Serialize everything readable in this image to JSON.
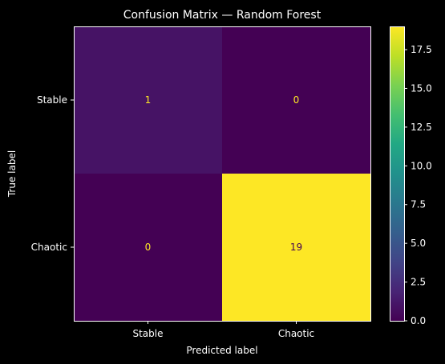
{
  "chart_data": {
    "type": "heatmap",
    "title": "Confusion Matrix — Random Forest",
    "xlabel": "Predicted label",
    "ylabel": "True label",
    "x_categories": [
      "Stable",
      "Chaotic"
    ],
    "y_categories": [
      "Stable",
      "Chaotic"
    ],
    "values": [
      [
        1,
        0
      ],
      [
        0,
        19
      ]
    ],
    "colormap": "viridis",
    "color_range": [
      0,
      19
    ],
    "colorbar_ticks": [
      "0.0",
      "2.5",
      "5.0",
      "7.5",
      "10.0",
      "12.5",
      "15.0",
      "17.5"
    ],
    "colorbar_tick_values": [
      0,
      2.5,
      5,
      7.5,
      10,
      12.5,
      15,
      17.5
    ],
    "text_color_light": "#fde725",
    "text_color_dark": "#440154",
    "background": "#000000",
    "foreground": "#ffffff"
  }
}
